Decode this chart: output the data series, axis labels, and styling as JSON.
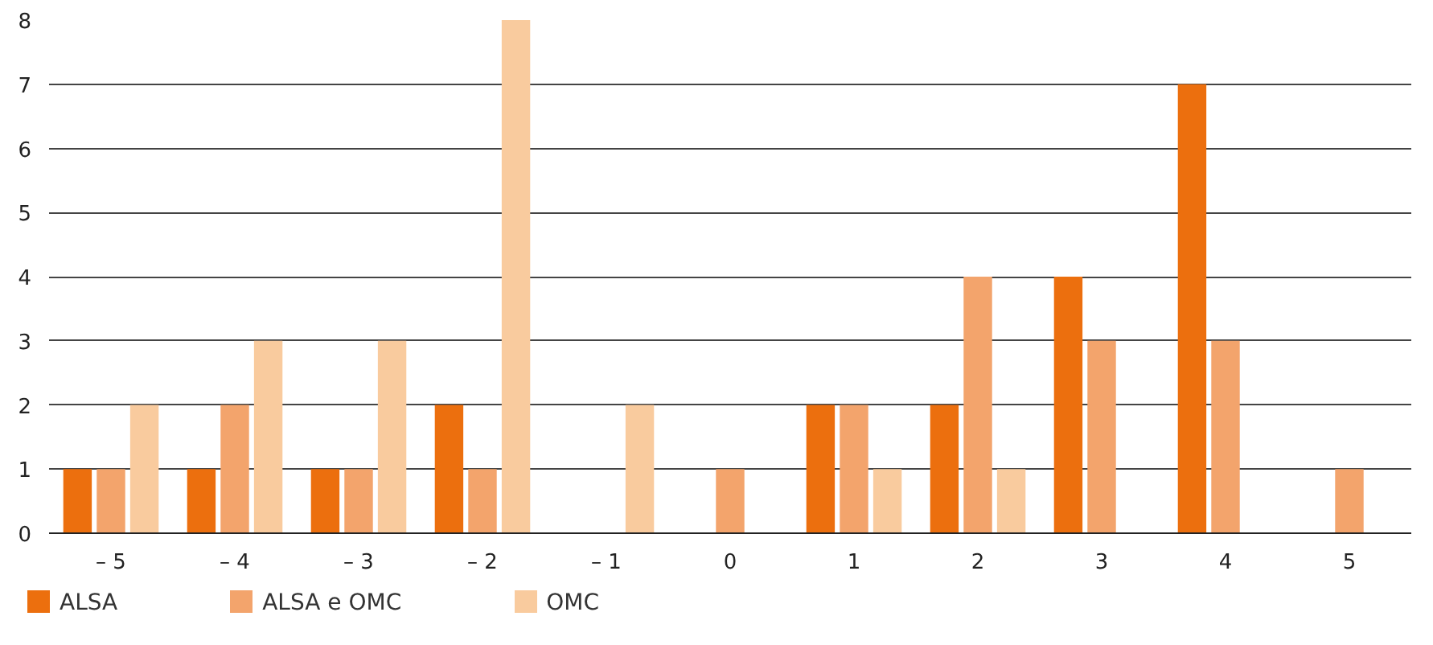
{
  "chart_data": {
    "type": "bar",
    "categories": [
      "– 5",
      "– 4",
      "– 3",
      "– 2",
      "– 1",
      "0",
      "1",
      "2",
      "3",
      "4",
      "5"
    ],
    "series": [
      {
        "name": "ALSA",
        "color": "#ec6f0e",
        "values": [
          1,
          1,
          1,
          2,
          0,
          0,
          2,
          2,
          4,
          7,
          0
        ]
      },
      {
        "name": "ALSA e OMC",
        "color": "#f3a46c",
        "values": [
          1,
          2,
          1,
          1,
          0,
          1,
          2,
          4,
          3,
          3,
          1
        ]
      },
      {
        "name": "OMC",
        "color": "#f9cb9e",
        "values": [
          2,
          3,
          3,
          8,
          2,
          0,
          1,
          1,
          0,
          0,
          0
        ]
      }
    ],
    "ylim": [
      0,
      8
    ],
    "yticks": [
      0,
      1,
      2,
      3,
      4,
      5,
      6,
      7,
      8
    ],
    "grid": "y",
    "legend": "bottom left"
  }
}
